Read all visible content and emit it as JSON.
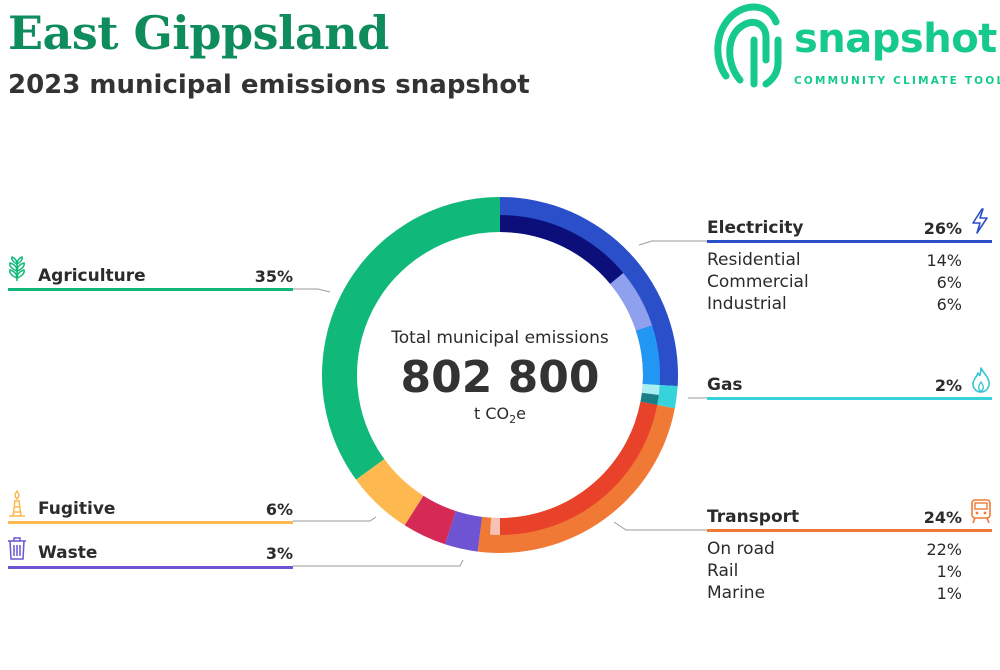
{
  "header": {
    "title": "East Gippsland",
    "subtitle": "2023 municipal emissions snapshot"
  },
  "logo": {
    "word": "snapshot",
    "tagline": "COMMUNITY CLIMATE TOOL"
  },
  "center": {
    "title": "Total municipal emissions",
    "value": "802 800",
    "unit_prefix": "t CO",
    "unit_sub": "2",
    "unit_suffix": "e"
  },
  "sectors": {
    "electricity": {
      "label": "Electricity",
      "pct": "26%",
      "color": "#2a4fc9",
      "subs": [
        {
          "label": "Residential",
          "pct": "14%"
        },
        {
          "label": "Commercial",
          "pct": "6%"
        },
        {
          "label": "Industrial",
          "pct": "6%"
        }
      ]
    },
    "gas": {
      "label": "Gas",
      "pct": "2%",
      "color": "#37d3dc"
    },
    "transport": {
      "label": "Transport",
      "pct": "24%",
      "color": "#f07a35",
      "subs": [
        {
          "label": "On road",
          "pct": "22%"
        },
        {
          "label": "Rail",
          "pct": "1%"
        },
        {
          "label": "Marine",
          "pct": "1%"
        }
      ]
    },
    "agriculture": {
      "label": "Agriculture",
      "pct": "35%",
      "color": "#10b979"
    },
    "fugitive": {
      "label": "Fugitive",
      "pct": "6%",
      "color": "#fdb94f"
    },
    "waste": {
      "label": "Waste",
      "pct": "3%",
      "color": "#6e54d2"
    }
  },
  "chart_data": {
    "type": "pie",
    "title": "Total municipal emissions",
    "total": 802800,
    "unit": "t CO2e",
    "series": [
      {
        "name": "Electricity",
        "value": 26,
        "color": "#2a4fc9",
        "sub": [
          {
            "name": "Residential",
            "value": 14,
            "color": "#0c0f7a"
          },
          {
            "name": "Commercial",
            "value": 6,
            "color": "#8fa1ee"
          },
          {
            "name": "Industrial",
            "value": 6,
            "color": "#2196f3"
          }
        ]
      },
      {
        "name": "Gas",
        "value": 2,
        "color": "#37d3dc",
        "sub": [
          {
            "name": "",
            "value": 1,
            "color": "#a8eff2"
          },
          {
            "name": "",
            "value": 1,
            "color": "#1c7f86"
          }
        ]
      },
      {
        "name": "Transport",
        "value": 24,
        "color": "#f07a35",
        "sub": [
          {
            "name": "On road",
            "value": 22,
            "color": "#e8432a"
          },
          {
            "name": "Rail",
            "value": 1,
            "color": "#f7c2b4"
          },
          {
            "name": "Marine",
            "value": 1,
            "color": "#f07a35"
          }
        ]
      },
      {
        "name": "Waste",
        "value": 3,
        "color": "#6e54d2"
      },
      {
        "name": "",
        "value": 4,
        "color": "#d42a55"
      },
      {
        "name": "Fugitive",
        "value": 6,
        "color": "#fdb94f"
      },
      {
        "name": "Agriculture",
        "value": 35,
        "color": "#10b979"
      }
    ]
  }
}
